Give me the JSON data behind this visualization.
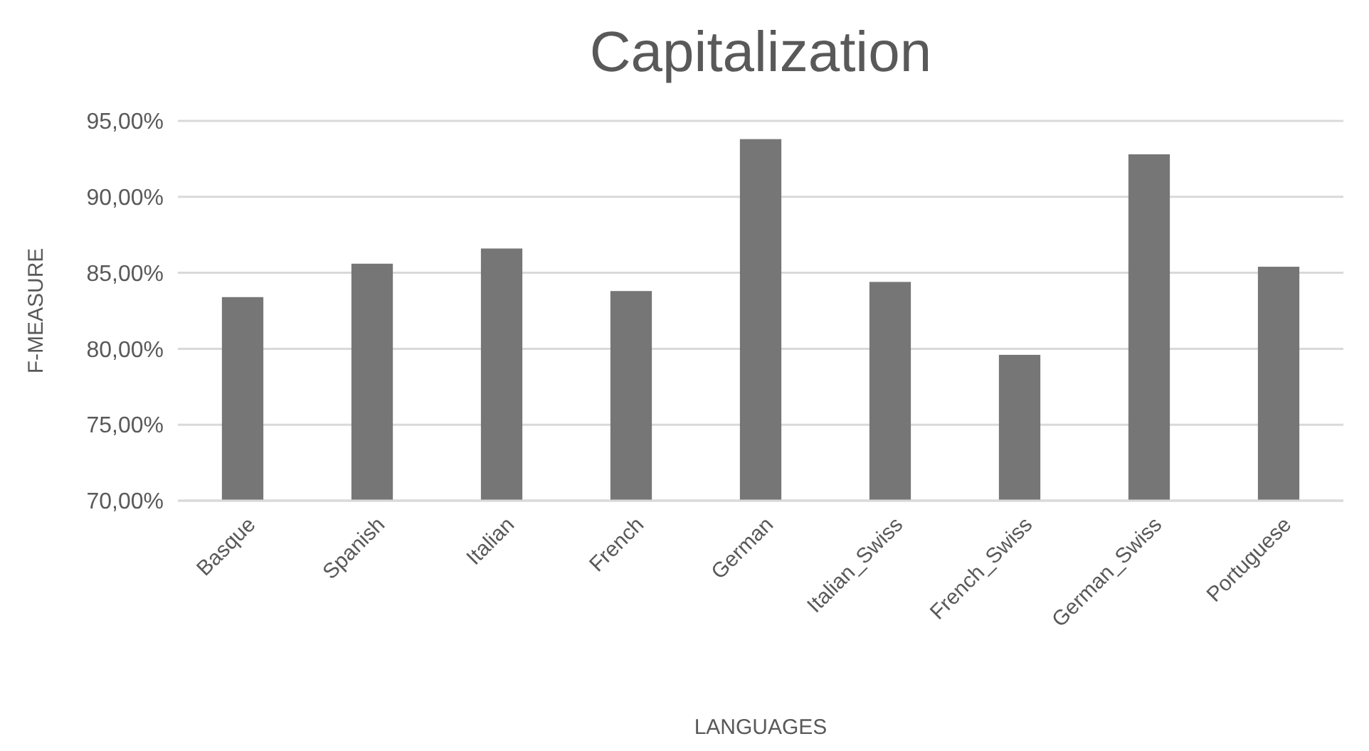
{
  "chart_data": {
    "type": "bar",
    "title": "Capitalization",
    "xlabel": "LANGUAGES",
    "ylabel": "F-MEASURE",
    "categories": [
      "Basque",
      "Spanish",
      "Italian",
      "French",
      "German",
      "Italian_Swiss",
      "French_Swiss",
      "German_Swiss",
      "Portuguese"
    ],
    "values": [
      83.4,
      85.6,
      86.6,
      83.8,
      93.8,
      84.4,
      79.6,
      92.8,
      85.4
    ],
    "color": "#767676",
    "ylim": [
      70,
      95
    ],
    "yticks": [
      {
        "value": 70,
        "label": "70,00%"
      },
      {
        "value": 75,
        "label": "75,00%"
      },
      {
        "value": 80,
        "label": "80,00%"
      },
      {
        "value": 85,
        "label": "85,00%"
      },
      {
        "value": 90,
        "label": "90,00%"
      },
      {
        "value": 95,
        "label": "95,00%"
      }
    ],
    "grid": true
  }
}
